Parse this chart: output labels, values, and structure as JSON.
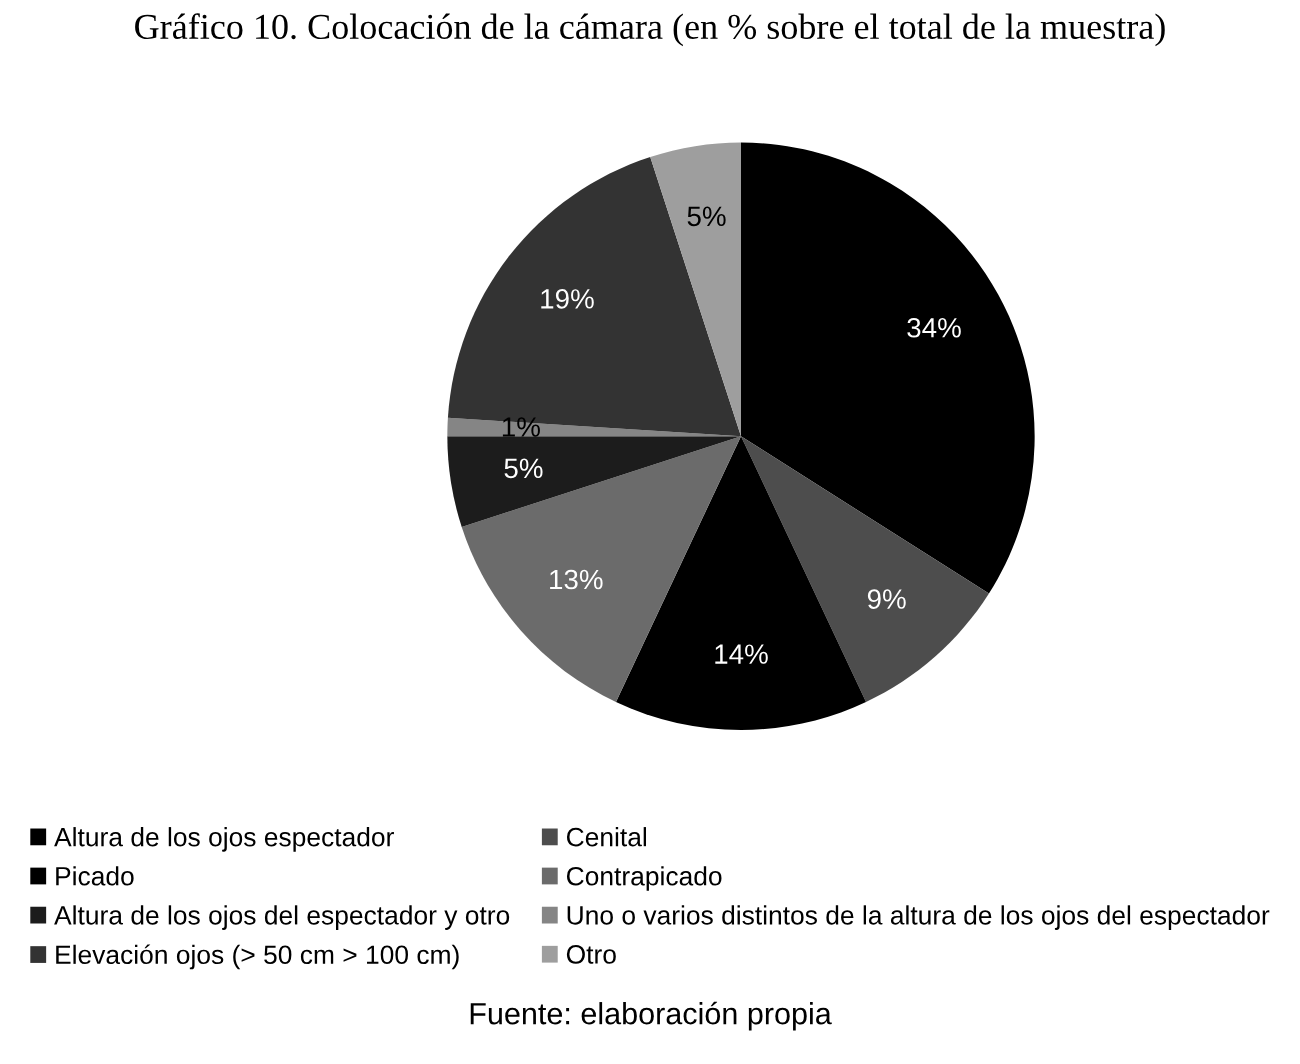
{
  "chart_data": {
    "type": "pie",
    "title": "Gráfico 10. Colocación de la cámara (en % sobre el total de la muestra)",
    "categories": [
      "Altura de los ojos espectador",
      "Cenital",
      "Picado",
      "Contrapicado",
      "Altura de los ojos del espectador y otro",
      "Uno o varios distintos de la altura de los ojos del espectador",
      "Elevación ojos (> 50 cm > 100 cm)",
      "Otro"
    ],
    "values": [
      34,
      9,
      14,
      13,
      5,
      1,
      19,
      5
    ],
    "colors": [
      "#000000",
      "#4d4d4d",
      "#000000",
      "#6b6b6b",
      "#1c1c1c",
      "#858585",
      "#333333",
      "#9e9e9e"
    ],
    "value_labels": [
      "34%",
      "9%",
      "14%",
      "13%",
      "5%",
      "1%",
      "19%",
      "5%"
    ],
    "legend": "bottom",
    "annotations": [
      "Fuente: elaboración propia"
    ]
  }
}
